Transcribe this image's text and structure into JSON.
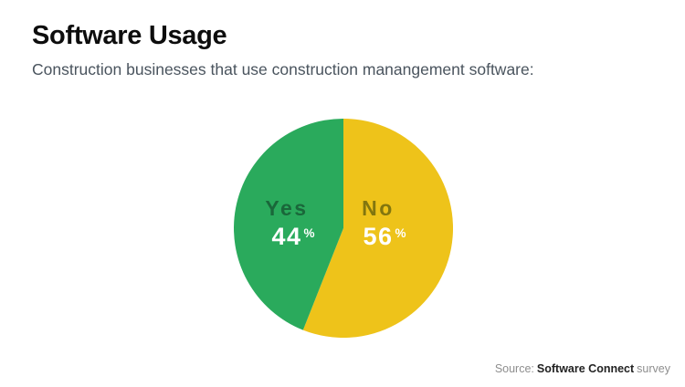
{
  "header": {
    "title": "Software Usage",
    "subtitle": "Construction businesses that use construction manangement software:"
  },
  "chart_data": {
    "type": "pie",
    "title": "Software Usage",
    "subtitle": "Construction businesses that use construction manangement software:",
    "unit": "%",
    "slices": [
      {
        "label": "Yes",
        "value": 44,
        "color": "#2AAA5C",
        "label_color": "#1A673A",
        "value_color": "#FFFFFF"
      },
      {
        "label": "No",
        "value": 56,
        "color": "#EEC31A",
        "label_color": "#82760F",
        "value_color": "#FFFFFF"
      }
    ],
    "start_angle": "top",
    "direction": "clockwise",
    "draw_order_clockwise_from_top": [
      "No",
      "Yes"
    ],
    "legend": "none",
    "labels_inside": true
  },
  "footer": {
    "source_prefix": "Source:",
    "source_name": "Software Connect",
    "source_suffix": "survey"
  }
}
